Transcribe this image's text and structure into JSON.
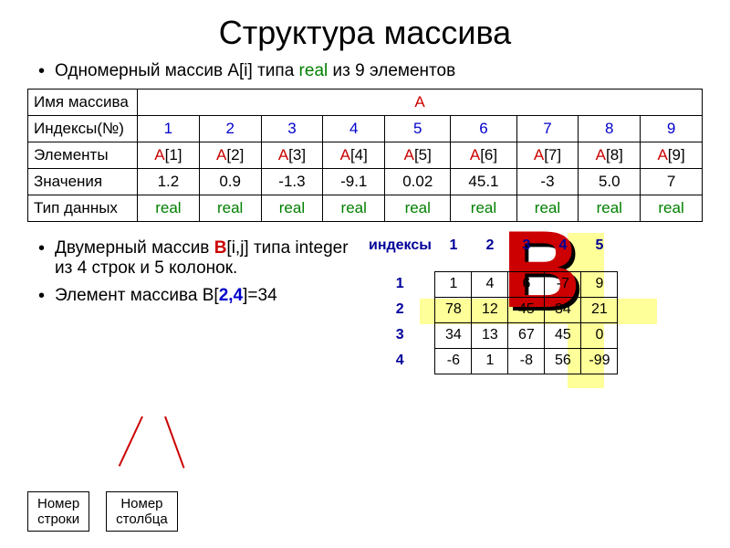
{
  "title": "Структура массива",
  "bullet1_pre": "Одномерный массив A[i] типа ",
  "bullet1_real": "real",
  "bullet1_post": " из 9 элементов",
  "tableA": {
    "row1_label": "Имя массива",
    "row1_value": "А",
    "row2_label": "Индексы(№)",
    "indices": [
      "1",
      "2",
      "3",
      "4",
      "5",
      "6",
      "7",
      "8",
      "9"
    ],
    "row3_label": "Элементы",
    "elements_pre": "А",
    "elements_idx": [
      "[1]",
      "[2]",
      "[3]",
      "[4]",
      "[5]",
      "[6]",
      "[7]",
      "[8]",
      "[9]"
    ],
    "row4_label": "Значения",
    "values": [
      "1.2",
      "0.9",
      "-1.3",
      "-9.1",
      "0.02",
      "45.1",
      "-3",
      "5.0",
      "7"
    ],
    "row5_label": "Тип данных",
    "types": [
      "real",
      "real",
      "real",
      "real",
      "real",
      "real",
      "real",
      "real",
      "real"
    ]
  },
  "bullet2_a": "Двумерный массив ",
  "bullet2_b": "В",
  "bullet2_c": "[i,j] типа integer из 4 строк и 5 колонок.",
  "bullet3_a": "Элемент массива В[",
  "bullet3_b": "2,4",
  "bullet3_c": "]=34",
  "idx_label": "индексы",
  "big_b": "В",
  "matrix": {
    "col_idx": [
      "1",
      "2",
      "3",
      "4",
      "5"
    ],
    "row_idx": [
      "1",
      "2",
      "3",
      "4"
    ],
    "data": [
      [
        "1",
        "4",
        "6",
        "-7",
        "9"
      ],
      [
        "78",
        "12",
        "45",
        "34",
        "21"
      ],
      [
        "34",
        "13",
        "67",
        "45",
        "0"
      ],
      [
        "-6",
        "1",
        "-8",
        "56",
        "-99"
      ]
    ]
  },
  "box1_l1": "Номер",
  "box1_l2": "строки",
  "box2_l1": "Номер",
  "box2_l2": "столбца"
}
